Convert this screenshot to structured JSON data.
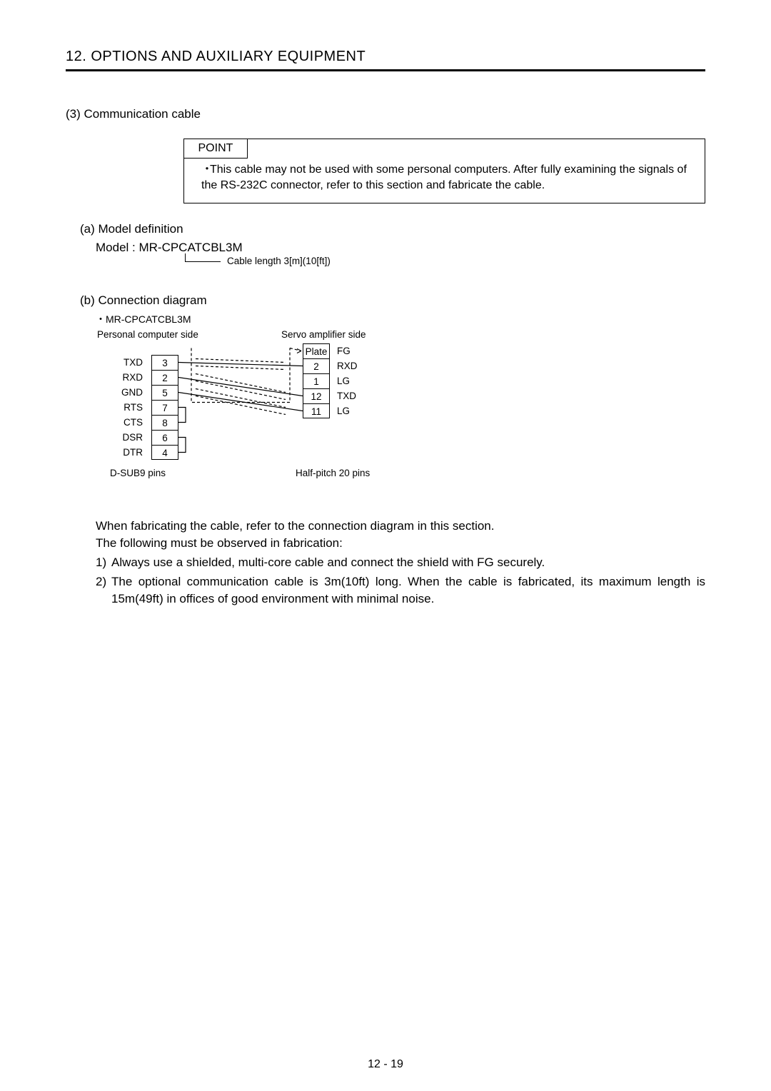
{
  "chapter_title": "12. OPTIONS AND AUXILIARY EQUIPMENT",
  "section3": "(3) Communication cable",
  "point": {
    "label": "POINT",
    "bullet": "・",
    "text": "This cable may not be used with some personal computers. After fully examining the signals of the RS-232C connector, refer to this section and fabricate the cable."
  },
  "subA": "(a) Model definition",
  "model_line": "Model : MR-CPCATCBL3M",
  "callout": "Cable length 3[m](10[ft])",
  "subB": "(b) Connection diagram",
  "diag_label": "・MR-CPCATCBL3M",
  "diagram": {
    "hdr_left": "Personal computer side",
    "hdr_right": "Servo amplifier side",
    "left_signals": [
      "TXD",
      "RXD",
      "GND",
      "RTS",
      "CTS",
      "DSR",
      "DTR"
    ],
    "left_pins": [
      "3",
      "2",
      "5",
      "7",
      "8",
      "6",
      "4"
    ],
    "right_pins": [
      "Plate",
      "2",
      "1",
      "12",
      "11"
    ],
    "right_signals": [
      "FG",
      "RXD",
      "LG",
      "TXD",
      "LG"
    ],
    "foot_left": "D-SUB9 pins",
    "foot_right": "Half-pitch 20 pins",
    "wire_color": "#000000",
    "dash_pattern": "4,3",
    "wires": [
      {
        "from_row": 0,
        "to_row": 1
      },
      {
        "from_row": 1,
        "to_row": 3
      },
      {
        "from_row": 2,
        "to_row": 4
      }
    ],
    "jumpers_left": [
      {
        "rowA": 3,
        "rowB": 4
      },
      {
        "rowA": 5,
        "rowB": 6
      }
    ],
    "shield_to_row": 0
  },
  "fab_para1": "When fabricating the cable, refer to the connection diagram in this section.",
  "fab_para2": "The following must be observed in fabrication:",
  "fab_item1_n": "1)",
  "fab_item1_t": "Always use a shielded, multi-core cable and connect the shield with FG securely.",
  "fab_item2_n": "2)",
  "fab_item2_t": "The optional communication cable is 3m(10ft) long. When the cable is fabricated, its maximum length is 15m(49ft) in offices of good environment with minimal noise.",
  "page_number": "12 -  19",
  "colors": {
    "text": "#000000",
    "background": "#ffffff",
    "rule": "#000000"
  }
}
